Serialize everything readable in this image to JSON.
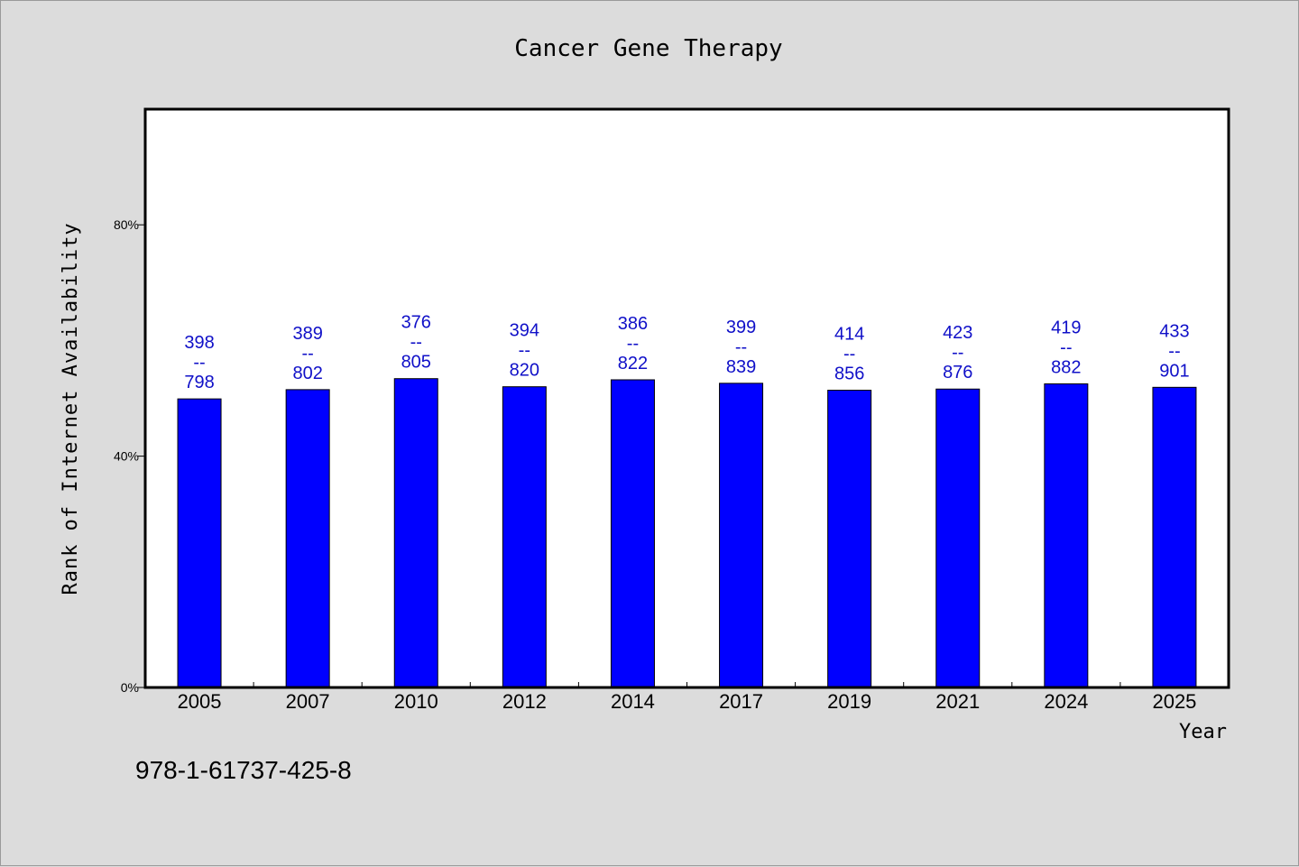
{
  "chart_data": {
    "type": "bar",
    "title": "Cancer Gene Therapy",
    "xlabel": "Year",
    "ylabel": "Rank of Internet Availability",
    "categories": [
      "2005",
      "2007",
      "2010",
      "2012",
      "2014",
      "2017",
      "2019",
      "2021",
      "2024",
      "2025"
    ],
    "values": [
      49.9,
      51.5,
      53.4,
      52.0,
      53.2,
      52.6,
      51.4,
      51.6,
      52.5,
      51.9
    ],
    "data_labels": [
      {
        "top": "398",
        "sep": "--",
        "bottom": "798"
      },
      {
        "top": "389",
        "sep": "--",
        "bottom": "802"
      },
      {
        "top": "376",
        "sep": "--",
        "bottom": "805"
      },
      {
        "top": "394",
        "sep": "--",
        "bottom": "820"
      },
      {
        "top": "386",
        "sep": "--",
        "bottom": "822"
      },
      {
        "top": "399",
        "sep": "--",
        "bottom": "839"
      },
      {
        "top": "414",
        "sep": "--",
        "bottom": "856"
      },
      {
        "top": "423",
        "sep": "--",
        "bottom": "876"
      },
      {
        "top": "419",
        "sep": "--",
        "bottom": "882"
      },
      {
        "top": "433",
        "sep": "--",
        "bottom": "901"
      }
    ],
    "ylim": [
      0,
      100
    ],
    "yticks": [
      0,
      40,
      80
    ],
    "ytick_labels": [
      "0%",
      "40%",
      "80%"
    ],
    "grid": false,
    "legend": "none",
    "colors": {
      "bar": "#0000ff",
      "bar_edge": "#000000",
      "data_label": "#1010c8",
      "background": "#dcdcdc",
      "plot_background": "#ffffff"
    }
  },
  "footnote": "978-1-61737-425-8"
}
